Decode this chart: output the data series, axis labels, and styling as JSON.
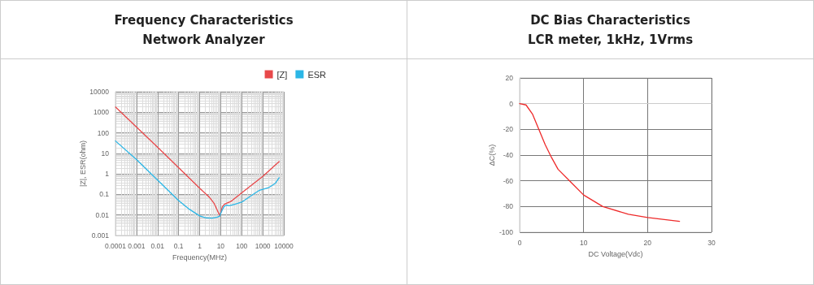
{
  "chart_data": [
    {
      "type": "line",
      "title": "Frequency Characteristics",
      "subtitle": "Network Analyzer",
      "xlabel": "Frequency(MHz)",
      "ylabel": "|Z|, ESR(ohm)",
      "log": "xy",
      "grid": true,
      "legend": "top right",
      "marker": "none",
      "line_style": "solid",
      "xlim": [
        0.0001,
        10000
      ],
      "xticks": [
        0.0001,
        0.001,
        0.01,
        0.1,
        1,
        10,
        100,
        1000,
        10000
      ],
      "ylim": [
        0.001,
        10000
      ],
      "yticks": [
        0.001,
        0.01,
        0.1,
        1,
        10,
        100,
        1000,
        10000
      ],
      "series": [
        {
          "name": "[Z]",
          "color": "#e8484a",
          "x": [
            0.0001,
            0.001,
            0.01,
            0.1,
            1,
            3,
            5,
            8,
            9,
            12,
            15,
            20,
            30,
            100,
            1000,
            6000
          ],
          "values": [
            1800,
            190,
            20,
            2,
            0.2,
            0.07,
            0.035,
            0.012,
            0.009,
            0.025,
            0.033,
            0.038,
            0.045,
            0.12,
            0.75,
            4
          ]
        },
        {
          "name": "ESR",
          "color": "#2bb6e6",
          "x": [
            0.0001,
            0.001,
            0.01,
            0.1,
            0.3,
            1,
            2,
            4,
            7,
            9,
            12,
            15,
            20,
            25,
            50,
            100,
            300,
            700,
            2000,
            4000,
            6000
          ],
          "values": [
            40,
            5,
            0.5,
            0.05,
            0.02,
            0.009,
            0.0072,
            0.007,
            0.0078,
            0.0088,
            0.018,
            0.027,
            0.03,
            0.028,
            0.034,
            0.042,
            0.09,
            0.16,
            0.22,
            0.35,
            0.65
          ]
        }
      ]
    },
    {
      "type": "line",
      "title": "DC Bias Characteristics",
      "subtitle": "LCR meter, 1kHz, 1Vrms",
      "xlabel": "DC Voltage(Vdc)",
      "ylabel": "ΔC(%)",
      "grid": true,
      "legend": false,
      "marker": "none",
      "line_style": "solid",
      "xlim": [
        0,
        30
      ],
      "xticks": [
        0,
        10,
        20,
        30
      ],
      "ylim": [
        -100,
        20
      ],
      "yticks": [
        -100,
        -80,
        -60,
        -40,
        -20,
        0,
        20
      ],
      "series": [
        {
          "color": "#ee2a2a",
          "x": [
            0,
            1,
            2,
            3,
            4,
            5,
            6,
            8,
            10,
            13,
            17,
            20,
            25
          ],
          "values": [
            0,
            -1,
            -8,
            -20,
            -32,
            -42,
            -51,
            -61,
            -71,
            -80,
            -86,
            -88.5,
            -91.5
          ]
        }
      ]
    }
  ]
}
